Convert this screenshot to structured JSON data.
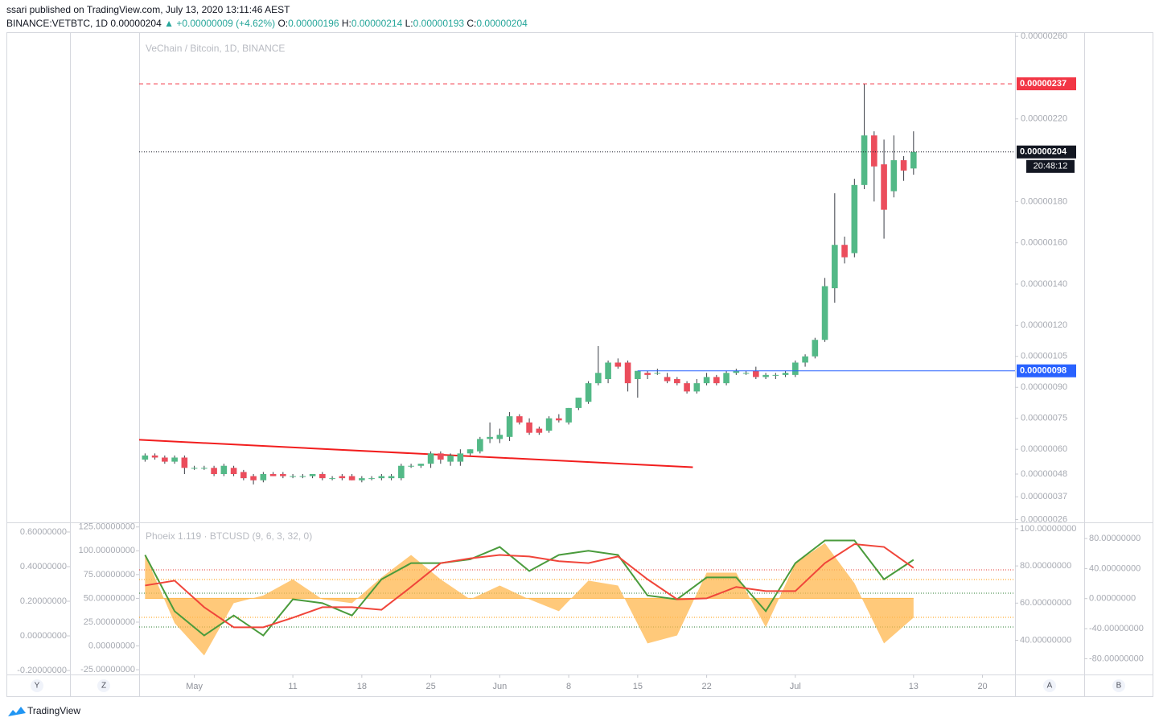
{
  "header": {
    "publisher": "ssari published on TradingView.com, July 13, 2020 13:11:46 AEST",
    "symbol": "BINANCE:VETBTC, 1D",
    "last": "0.00000204",
    "change": "▲ +0.00000009 (+4.62%)",
    "ohlc": [
      {
        "key": "O:",
        "value": "0.00000196"
      },
      {
        "key": "H:",
        "value": "0.00000214"
      },
      {
        "key": "L:",
        "value": "0.00000193"
      },
      {
        "key": "C:",
        "value": "0.00000204"
      }
    ]
  },
  "chart_data": [
    {
      "type": "candlestick",
      "title": "VeChain / Bitcoin, 1D, BINANCE",
      "up_color": "#53b987",
      "down_color": "#eb4d5c",
      "open": [
        5.5e-07,
        5.7e-07,
        5.6e-07,
        5.4e-07,
        5.6e-07,
        5.1e-07,
        5.1e-07,
        5.1e-07,
        4.8e-07,
        5.1e-07,
        4.9e-07,
        4.7e-07,
        4.5e-07,
        4.8e-07,
        4.8e-07,
        4.7e-07,
        4.7e-07,
        4.7e-07,
        4.8e-07,
        4.6e-07,
        4.7e-07,
        4.7e-07,
        4.5e-07,
        4.6e-07,
        4.6e-07,
        4.6e-07,
        4.6e-07,
        5.2e-07,
        5.2e-07,
        5.3e-07,
        5.8e-07,
        5.4e-07,
        5.4e-07,
        5.8e-07,
        5.9e-07,
        6.5e-07,
        6.5e-07,
        6.6e-07,
        7.6e-07,
        7.3e-07,
        7e-07,
        6.9e-07,
        7.5e-07,
        7.3e-07,
        8e-07,
        8.3e-07,
        9.2e-07,
        9.4e-07,
        1.02e-06,
        1.02e-06,
        9.4e-07,
        9.7e-07,
        9.7e-07,
        9.5e-07,
        9.4e-07,
        9.2e-07,
        8.8e-07,
        9.2e-07,
        9.5e-07,
        9.2e-07,
        9.7e-07,
        9.7e-07,
        9.8e-07,
        9.5e-07,
        9.6e-07,
        9.6e-07,
        9.6e-07,
        1.02e-06,
        1.05e-06,
        1.13e-06,
        1.38e-06,
        1.59e-06,
        1.55e-06,
        1.88e-06,
        2.12e-06,
        1.98e-06,
        1.85e-06,
        2e-06,
        1.96e-06
      ],
      "high": [
        5.8e-07,
        5.8e-07,
        5.7e-07,
        5.7e-07,
        5.7e-07,
        5.2e-07,
        5.2e-07,
        5.2e-07,
        5.3e-07,
        5.2e-07,
        5e-07,
        4.8e-07,
        4.9e-07,
        4.9e-07,
        4.9e-07,
        4.8e-07,
        4.8e-07,
        4.8e-07,
        4.9e-07,
        4.7e-07,
        4.8e-07,
        4.8e-07,
        4.7e-07,
        4.7e-07,
        4.8e-07,
        4.8e-07,
        5.3e-07,
        5.3e-07,
        5.3e-07,
        5.9e-07,
        5.9e-07,
        5.8e-07,
        6e-07,
        6e-07,
        6.6e-07,
        7.3e-07,
        7e-07,
        7.8e-07,
        7.7e-07,
        7.5e-07,
        7.1e-07,
        7.6e-07,
        7.7e-07,
        8e-07,
        8.5e-07,
        9.3e-07,
        1.1e-06,
        1.03e-06,
        1.04e-06,
        1.03e-06,
        9.8e-07,
        9.8e-07,
        9.9e-07,
        9.7e-07,
        9.5e-07,
        9.3e-07,
        9.4e-07,
        9.7e-07,
        9.6e-07,
        9.8e-07,
        9.9e-07,
        9.8e-07,
        1e-06,
        9.7e-07,
        9.7e-07,
        9.8e-07,
        1.03e-06,
        1.06e-06,
        1.14e-06,
        1.43e-06,
        1.84e-06,
        1.63e-06,
        1.91e-06,
        2.37e-06,
        2.14e-06,
        2.1e-06,
        2.12e-06,
        2.02e-06,
        2.14e-06
      ],
      "low": [
        5.4e-07,
        5.5e-07,
        5.3e-07,
        5.3e-07,
        4.8e-07,
        5e-07,
        5e-07,
        4.7e-07,
        4.7e-07,
        4.7e-07,
        4.5e-07,
        4.3e-07,
        4.4e-07,
        4.7e-07,
        4.6e-07,
        4.6e-07,
        4.6e-07,
        4.6e-07,
        4.5e-07,
        4.5e-07,
        4.5e-07,
        4.5e-07,
        4.4e-07,
        4.5e-07,
        4.5e-07,
        4.5e-07,
        4.5e-07,
        5.1e-07,
        5.1e-07,
        5.1e-07,
        5.3e-07,
        5.2e-07,
        5.2e-07,
        5.7e-07,
        5.8e-07,
        6.3e-07,
        6.3e-07,
        6.4e-07,
        7.2e-07,
        6.7e-07,
        6.7e-07,
        6.8e-07,
        7.3e-07,
        7.2e-07,
        7.9e-07,
        8.2e-07,
        9.1e-07,
        9.2e-07,
        9.9e-07,
        8.8e-07,
        8.5e-07,
        9.4e-07,
        9.6e-07,
        9.2e-07,
        9.1e-07,
        8.7e-07,
        8.7e-07,
        9.1e-07,
        9.1e-07,
        9.1e-07,
        9.6e-07,
        9.6e-07,
        9.4e-07,
        9.4e-07,
        9.4e-07,
        9.5e-07,
        9.5e-07,
        1e-06,
        1.04e-06,
        1.12e-06,
        1.31e-06,
        1.5e-06,
        1.53e-06,
        1.86e-06,
        1.8e-06,
        1.62e-06,
        1.82e-06,
        1.9e-06,
        1.93e-06
      ],
      "close": [
        5.7e-07,
        5.6e-07,
        5.4e-07,
        5.6e-07,
        5.1e-07,
        5.1e-07,
        5.1e-07,
        4.8e-07,
        5.2e-07,
        4.8e-07,
        4.6e-07,
        4.5e-07,
        4.8e-07,
        4.7e-07,
        4.7e-07,
        4.7e-07,
        4.7e-07,
        4.8e-07,
        4.6e-07,
        4.6e-07,
        4.6e-07,
        4.5e-07,
        4.6e-07,
        4.6e-07,
        4.7e-07,
        4.7e-07,
        5.2e-07,
        5.2e-07,
        5.3e-07,
        5.8e-07,
        5.5e-07,
        5.7e-07,
        5.8e-07,
        6e-07,
        6.5e-07,
        6.6e-07,
        6.7e-07,
        7.6e-07,
        7.3e-07,
        6.8e-07,
        6.8e-07,
        7.5e-07,
        7.4e-07,
        8e-07,
        8.5e-07,
        9.2e-07,
        9.7e-07,
        1.02e-06,
        1e-06,
        9.2e-07,
        9.8e-07,
        9.6e-07,
        9.7e-07,
        9.3e-07,
        9.2e-07,
        8.8e-07,
        9.2e-07,
        9.5e-07,
        9.2e-07,
        9.7e-07,
        9.8e-07,
        9.7e-07,
        9.5e-07,
        9.6e-07,
        9.6e-07,
        9.7e-07,
        1.02e-06,
        1.05e-06,
        1.13e-06,
        1.39e-06,
        1.59e-06,
        1.53e-06,
        1.88e-06,
        2.12e-06,
        1.97e-06,
        1.76e-06,
        2e-06,
        1.95e-06,
        2.04e-06
      ],
      "xlim": [
        -0.6,
        88.3
      ],
      "xticks": [
        {
          "value": 5,
          "label": "May"
        },
        {
          "value": 15,
          "label": "11"
        },
        {
          "value": 22,
          "label": "18"
        },
        {
          "value": 29,
          "label": "25"
        },
        {
          "value": 36,
          "label": "Jun"
        },
        {
          "value": 43,
          "label": "8"
        },
        {
          "value": 50,
          "label": "15"
        },
        {
          "value": 57,
          "label": "22"
        },
        {
          "value": 66,
          "label": "Jul"
        },
        {
          "value": 78,
          "label": "13"
        },
        {
          "value": 85,
          "label": "20"
        }
      ],
      "ylim": [
        2.5e-07,
        2.62e-06
      ],
      "yticks": [
        {
          "value": 2.6e-06,
          "label": "0.00000260"
        },
        {
          "value": 2.2e-06,
          "label": "0.00000220"
        },
        {
          "value": 1.8e-06,
          "label": "0.00000180"
        },
        {
          "value": 1.6e-06,
          "label": "0.00000160"
        },
        {
          "value": 1.4e-06,
          "label": "0.00000140"
        },
        {
          "value": 1.2e-06,
          "label": "0.00000120"
        },
        {
          "value": 1.05e-06,
          "label": "0.00000105"
        },
        {
          "value": 9e-07,
          "label": "0.00000090"
        },
        {
          "value": 7.5e-07,
          "label": "0.00000075"
        },
        {
          "value": 6e-07,
          "label": "0.00000060"
        },
        {
          "value": 4.8e-07,
          "label": "0.00000048"
        },
        {
          "value": 3.7e-07,
          "label": "0.00000037"
        },
        {
          "value": 2.6e-07,
          "label": "0.00000026"
        }
      ],
      "price_lines": [
        {
          "value": 2.37e-06,
          "label": "0.00000237",
          "color": "#f23645",
          "dash": "dashed"
        },
        {
          "value": 2.04e-06,
          "label": "0.00000204",
          "color": "#131722",
          "dash": "dotted"
        },
        {
          "value": 9.8e-07,
          "label": "0.00000098",
          "color": "#2962ff",
          "dash": "solid",
          "start": 50
        }
      ],
      "countdown": "20:48:12",
      "trendline": {
        "x": [
          -0.6,
          55.6
        ],
        "values": [
          6.46e-07,
          5.13e-07
        ],
        "color": "#f21e1e"
      }
    },
    {
      "type": "line",
      "title": "Phoeix 1.119 · BTCUSD (9, 6, 3, 32, 0)",
      "x": [
        0,
        3,
        6,
        9,
        12,
        15,
        18,
        21,
        24,
        27,
        30,
        33,
        36,
        39,
        42,
        45,
        48,
        51,
        54,
        57,
        60,
        63,
        66,
        69,
        72,
        75,
        78
      ],
      "xlim": [
        -0.6,
        88.3
      ],
      "ylim": [
        -30,
        129
      ],
      "yticks": [
        {
          "value": 125,
          "label": "125.00000000"
        },
        {
          "value": 100,
          "label": "100.00000000"
        },
        {
          "value": 75,
          "label": "75.00000000"
        },
        {
          "value": 50,
          "label": "50.00000000"
        },
        {
          "value": 25,
          "label": "25.00000000"
        },
        {
          "value": 0,
          "label": "0.00000000"
        },
        {
          "value": -25,
          "label": "-25.00000000"
        }
      ],
      "extra_axes": [
        {
          "position": "outer-left",
          "lim": [
            -0.223,
            0.651
          ],
          "ticks": [
            {
              "value": 0.6,
              "label": "0.60000000"
            },
            {
              "value": 0.4,
              "label": "0.40000000"
            },
            {
              "value": 0.2,
              "label": "0.20000000"
            },
            {
              "value": 0,
              "label": "0.00000000"
            },
            {
              "value": -0.2,
              "label": "-0.20000000"
            }
          ]
        },
        {
          "position": "right",
          "lim": [
            21.6,
            103
          ],
          "ticks": [
            {
              "value": 100,
              "label": "100.00000000"
            },
            {
              "value": 80,
              "label": "80.00000000"
            },
            {
              "value": 60,
              "label": "60.00000000"
            },
            {
              "value": 40,
              "label": "40.00000000"
            }
          ]
        },
        {
          "position": "outer-right",
          "lim": [
            -101,
            100.4
          ],
          "ticks": [
            {
              "value": 80,
              "label": "80.00000000"
            },
            {
              "value": 40,
              "label": "40.00000000"
            },
            {
              "value": 0,
              "label": "0.00000000"
            },
            {
              "value": -40,
              "label": "-40.00000000"
            },
            {
              "value": -80,
              "label": "-80.00000000"
            }
          ]
        }
      ],
      "area": {
        "color": "#ffb74d",
        "baseline": 50,
        "values": [
          95.6,
          24,
          -10,
          45,
          53,
          70,
          49,
          45,
          72,
          95.6,
          70,
          49,
          63.5,
          49,
          36.5,
          68.6,
          63.5,
          2.7,
          11,
          77,
          77,
          19.6,
          87,
          108,
          66,
          2.7,
          29.7
        ]
      },
      "series": [
        {
          "color": "#4a9b3c",
          "values": [
            95.6,
            36.5,
            11,
            32,
            11,
            49,
            45,
            32,
            70,
            87,
            87,
            91,
            104,
            78.7,
            95.6,
            100,
            95.6,
            53,
            49,
            72,
            72,
            36.5,
            87,
            110.8,
            110.8,
            70,
            90.5
          ]
        },
        {
          "color": "#f0453a",
          "values": [
            63.5,
            68.6,
            40.7,
            19.6,
            19.6,
            29.7,
            40.7,
            40.7,
            38,
            62,
            87,
            92,
            95.6,
            94,
            89,
            87,
            94,
            70,
            49,
            50,
            62,
            57.6,
            57.6,
            87,
            107,
            104,
            82
          ]
        }
      ]
    }
  ],
  "buttons": [
    "Y",
    "Z",
    "A",
    "B"
  ],
  "footer": {
    "brand": "TradingView"
  }
}
